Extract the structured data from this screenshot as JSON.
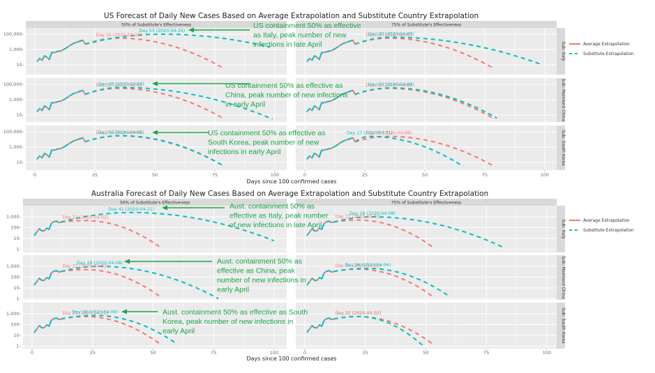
{
  "colors": {
    "average": "#f8766d",
    "substitute": "#00bfc4",
    "panel_bg": "#ebebeb",
    "strip_bg": "#d9d9d9",
    "grid": "#ffffff",
    "annotation": "#1aa64a"
  },
  "legend": {
    "items": [
      {
        "label": "Average Extrapolation",
        "style": "solid",
        "color": "#f8766d"
      },
      {
        "label": "Substitute Extrapolation",
        "style": "dashed",
        "color": "#00bfc4"
      }
    ]
  },
  "chart_data": [
    {
      "type": "line",
      "id": "us",
      "title": "US Forecast of Daily New Cases Based on Average Extrapolation and Substitute Country Extrapolation",
      "xlabel": "Days since 100 confirmed cases",
      "ylabel": "",
      "yscale": "log10",
      "xlim": [
        0,
        100
      ],
      "ylim": [
        1,
        1000000
      ],
      "x_ticks": [
        "0",
        "25",
        "50",
        "75",
        "100"
      ],
      "x_tick_values": [
        0,
        25,
        50,
        75,
        100
      ],
      "y_ticks": [
        "100,000",
        "1,000",
        "10"
      ],
      "y_tick_values": [
        100000,
        1000,
        10
      ],
      "grid": true,
      "legend_position": "right",
      "columns": [
        "50% of Substitute's Effectiveness",
        "75% of Substitute's Effectiveness"
      ],
      "rows": [
        "Sub: Italy",
        "Sub: Mainland China",
        "Sub: South Korea"
      ],
      "observed": {
        "x": [
          1,
          2,
          3,
          4,
          5,
          6,
          7,
          8,
          9,
          10,
          11,
          12,
          13,
          14,
          15,
          16,
          17,
          18,
          19,
          20,
          21
        ],
        "y": [
          30,
          70,
          40,
          150,
          100,
          50,
          400,
          400,
          500,
          600,
          700,
          1000,
          1500,
          2500,
          4000,
          6000,
          8000,
          10000,
          13000,
          16000,
          5000
        ]
      },
      "panels": [
        {
          "row": 0,
          "col": 0,
          "average": {
            "start": 21,
            "peak_day": 35,
            "peak_value": 30000,
            "end": 79,
            "end_value": 3
          },
          "substitute": {
            "start": 21,
            "peak_day": 53,
            "peak_value": 100000,
            "end": 98,
            "end_value": 2000
          },
          "labels": [
            {
              "series": "average",
              "text": "Day 35 (2020-04-08)"
            },
            {
              "series": "substitute",
              "text": "Day 53 (2020-04-26)"
            }
          ],
          "note": "US containment 50% as effective as Italy, peak number of new infections in late April"
        },
        {
          "row": 1,
          "col": 0,
          "average": {
            "start": 21,
            "peak_day": 35,
            "peak_value": 30000,
            "end": 79,
            "end_value": 3
          },
          "substitute": {
            "start": 21,
            "peak_day": 36,
            "peak_value": 40000,
            "end": 99,
            "end_value": 3
          },
          "labels": [
            {
              "series": "average",
              "text": "Day 35 (2020-04-08)"
            },
            {
              "series": "substitute",
              "text": "Day 36 (2020-04-09)"
            }
          ],
          "note": "US containment 50% as effective as China, peak number of new infections in early April"
        },
        {
          "row": 2,
          "col": 0,
          "average": {
            "start": 21,
            "peak_day": 35,
            "peak_value": 30000,
            "end": 79,
            "end_value": 3
          },
          "substitute": {
            "start": 21,
            "peak_day": 36,
            "peak_value": 30000,
            "end": 79,
            "end_value": 3
          },
          "labels": [
            {
              "series": "average",
              "text": "Day 35 (2020-04-08)"
            },
            {
              "series": "substitute",
              "text": "Day 36 (2020-04-09)"
            }
          ],
          "note": "US containment 50% as effective as South Korea, peak number of new infections in early April"
        },
        {
          "row": 0,
          "col": 1,
          "average": {
            "start": 21,
            "peak_day": 35,
            "peak_value": 30000,
            "end": 79,
            "end_value": 3
          },
          "substitute": {
            "start": 21,
            "peak_day": 36,
            "peak_value": 40000,
            "end": 99,
            "end_value": 10
          },
          "labels": [
            {
              "series": "average",
              "text": "Day 35 (2020-04-08)"
            },
            {
              "series": "substitute",
              "text": "Day 36 (2020-04-09)"
            }
          ],
          "note": ""
        },
        {
          "row": 1,
          "col": 1,
          "average": {
            "start": 21,
            "peak_day": 35,
            "peak_value": 30000,
            "end": 79,
            "end_value": 3
          },
          "substitute": {
            "start": 21,
            "peak_day": 36,
            "peak_value": 35000,
            "end": 80,
            "end_value": 4
          },
          "labels": [
            {
              "series": "average",
              "text": "Day 35 (2020-04-08)"
            },
            {
              "series": "substitute",
              "text": "Day 36 (2020-04-09)"
            }
          ],
          "note": ""
        },
        {
          "row": 2,
          "col": 1,
          "average": {
            "start": 21,
            "peak_day": 35,
            "peak_value": 25000,
            "end": 79,
            "end_value": 3
          },
          "substitute": {
            "start": 21,
            "peak_day": 27,
            "peak_value": 25000,
            "end": 66,
            "end_value": 3
          },
          "labels": [
            {
              "series": "substitute",
              "text": "Day 27 (2020-03-31)"
            },
            {
              "series": "average",
              "text": "Day 35 (2020-04-08)"
            }
          ],
          "note": ""
        }
      ]
    },
    {
      "type": "line",
      "id": "australia",
      "title": "Australia Forecast of Daily New Cases Based on Average Extrapolation and Substitute Country Extrapolation",
      "xlabel": "Days since 100 confirmed cases",
      "ylabel": "",
      "yscale": "log10",
      "xlim": [
        0,
        100
      ],
      "ylim": [
        0.5,
        10000
      ],
      "x_ticks": [
        "0",
        "25",
        "50",
        "75",
        "100"
      ],
      "x_tick_values": [
        0,
        25,
        50,
        75,
        100
      ],
      "y_ticks": [
        "1,000",
        "100",
        "10",
        "1"
      ],
      "y_tick_values": [
        1000,
        100,
        10,
        1
      ],
      "grid": true,
      "legend_position": "right",
      "columns": [
        "50% of Substitute's Effectiveness",
        "75% of Substitute's Effectiveness"
      ],
      "rows": [
        "Sub: Italy",
        "Sub: Mainland China",
        "Sub: South Korea"
      ],
      "observed": {
        "x": [
          1,
          2,
          3,
          4,
          5,
          6,
          7,
          8,
          9,
          10,
          11,
          12
        ],
        "y": [
          20,
          40,
          80,
          50,
          50,
          90,
          70,
          250,
          350,
          400,
          300,
          330
        ]
      },
      "panels": [
        {
          "row": 0,
          "col": 0,
          "average": {
            "start": 12,
            "peak_day": 22,
            "peak_value": 450,
            "end": 53,
            "end_value": 1.5
          },
          "substitute": {
            "start": 12,
            "peak_day": 41,
            "peak_value": 2500,
            "end": 100,
            "end_value": 6
          },
          "labels": [
            {
              "series": "average",
              "text": "Day 22 (2020-04-02)"
            },
            {
              "series": "substitute",
              "text": "Day 41 (2020-04-21)"
            }
          ],
          "note": "Aust. containment 50% as effective as Italy, peak number of new infections in late April"
        },
        {
          "row": 1,
          "col": 0,
          "average": {
            "start": 12,
            "peak_day": 22,
            "peak_value": 500,
            "end": 53,
            "end_value": 1.5
          },
          "substitute": {
            "start": 12,
            "peak_day": 28,
            "peak_value": 1000,
            "end": 77,
            "end_value": 1
          },
          "labels": [
            {
              "series": "average",
              "text": "Day 22 (2020-04-02)"
            },
            {
              "series": "substitute",
              "text": "Day 28 (2020-04-08)"
            }
          ],
          "note": "Aust. containment 50% as effective as China, peak number of new infections in early April"
        },
        {
          "row": 2,
          "col": 0,
          "average": {
            "start": 12,
            "peak_day": 22,
            "peak_value": 550,
            "end": 53,
            "end_value": 1.5
          },
          "substitute": {
            "start": 12,
            "peak_day": 26,
            "peak_value": 700,
            "end": 60,
            "end_value": 1.5
          },
          "labels": [
            {
              "series": "average",
              "text": "Day 22 (2020-04-02)"
            },
            {
              "series": "substitute",
              "text": "Day 26 (2020-04-06)"
            }
          ],
          "note": "Aust. containment 50% as effective as South Korea, peak number of new infections in early April"
        },
        {
          "row": 0,
          "col": 1,
          "average": {
            "start": 12,
            "peak_day": 22,
            "peak_value": 500,
            "end": 53,
            "end_value": 1.5
          },
          "substitute": {
            "start": 12,
            "peak_day": 28,
            "peak_value": 1000,
            "end": 82,
            "end_value": 1.5
          },
          "labels": [
            {
              "series": "average",
              "text": "Day 22 (2020-04-02)"
            },
            {
              "series": "substitute",
              "text": "Day 28 (2020-04-08)"
            }
          ],
          "note": ""
        },
        {
          "row": 1,
          "col": 1,
          "average": {
            "start": 12,
            "peak_day": 22,
            "peak_value": 550,
            "end": 53,
            "end_value": 1.5
          },
          "substitute": {
            "start": 12,
            "peak_day": 26,
            "peak_value": 650,
            "end": 60,
            "end_value": 1.5
          },
          "labels": [
            {
              "series": "average",
              "text": "Day 22 (2020-04-02)"
            },
            {
              "series": "substitute",
              "text": "Day 26 (2020-04-06)"
            }
          ],
          "note": ""
        },
        {
          "row": 2,
          "col": 1,
          "average": {
            "start": 12,
            "peak_day": 22,
            "peak_value": 550,
            "end": 53,
            "end_value": 1.5
          },
          "substitute": {
            "start": 12,
            "peak_day": 22,
            "peak_value": 550,
            "end": 49,
            "end_value": 1
          },
          "labels": [
            {
              "series": "substitute",
              "text": "Day 22 (2020-04-02)"
            },
            {
              "series": "average",
              "text": "Day 22 (2020-04-02)"
            }
          ],
          "note": ""
        }
      ]
    }
  ]
}
